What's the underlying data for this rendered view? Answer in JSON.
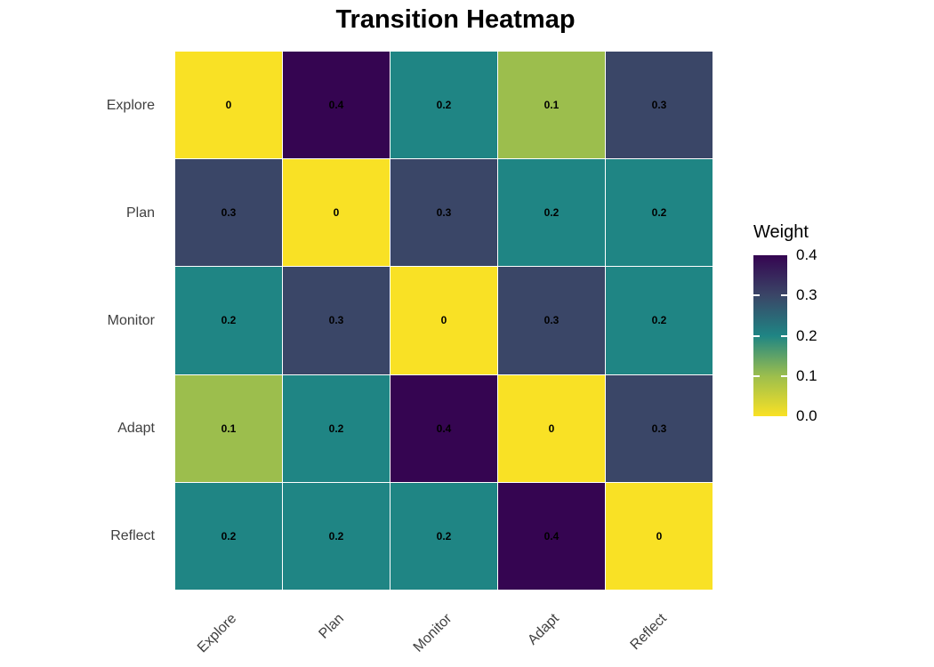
{
  "title": "Transition Heatmap",
  "chart_data": {
    "type": "heatmap",
    "title": "Transition Heatmap",
    "x_categories": [
      "Explore",
      "Plan",
      "Monitor",
      "Adapt",
      "Reflect"
    ],
    "y_categories": [
      "Explore",
      "Plan",
      "Monitor",
      "Adapt",
      "Reflect"
    ],
    "values": [
      [
        0,
        0.4,
        0.2,
        0.1,
        0.3
      ],
      [
        0.3,
        0,
        0.3,
        0.2,
        0.2
      ],
      [
        0.2,
        0.3,
        0,
        0.3,
        0.2
      ],
      [
        0.1,
        0.2,
        0.4,
        0,
        0.3
      ],
      [
        0.2,
        0.2,
        0.2,
        0.4,
        0
      ]
    ],
    "cell_labels": [
      [
        "0",
        "0.4",
        "0.2",
        "0.1",
        "0.3"
      ],
      [
        "0.3",
        "0",
        "0.3",
        "0.2",
        "0.2"
      ],
      [
        "0.2",
        "0.3",
        "0",
        "0.3",
        "0.2"
      ],
      [
        "0.1",
        "0.2",
        "0.4",
        "0",
        "0.3"
      ],
      [
        "0.2",
        "0.2",
        "0.2",
        "0.4",
        "0"
      ]
    ],
    "legend": {
      "title": "Weight",
      "tick_labels": [
        "0.4",
        "0.3",
        "0.2",
        "0.1",
        "0.0"
      ],
      "vmin": 0,
      "vmax": 0.4,
      "position": "right"
    },
    "colormap": {
      "name": "viridis-reversed",
      "stops": {
        "0": "#F9E125",
        "0.1": "#9CBE4D",
        "0.2": "#1F8584",
        "0.3": "#3A4667",
        "0.4": "#350551"
      }
    },
    "x_label_rotation_deg": 45,
    "grid": false,
    "axis_text_color": "#404040",
    "cell_text_color": "#000000",
    "background_color": "#FFFFFF"
  }
}
